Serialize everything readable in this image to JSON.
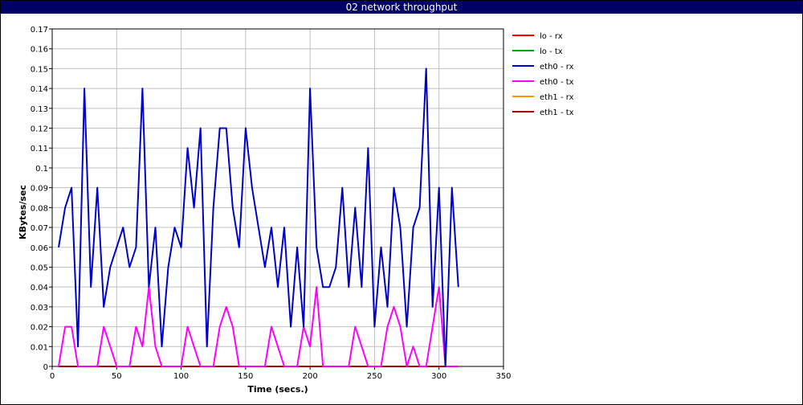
{
  "window": {
    "title": "02 network throughput"
  },
  "chart_data": {
    "type": "line",
    "title": "02 network throughput",
    "xlabel": "Time (secs.)",
    "ylabel": "KBytes/sec",
    "xlim": [
      0,
      350
    ],
    "ylim": [
      0,
      0.17
    ],
    "xticks": [
      0,
      50,
      100,
      150,
      200,
      250,
      300,
      350
    ],
    "yticks": [
      0,
      0.01,
      0.02,
      0.03,
      0.04,
      0.05,
      0.06,
      0.07,
      0.08,
      0.09,
      0.1,
      0.11,
      0.12,
      0.13,
      0.14,
      0.15,
      0.16,
      0.17
    ],
    "grid": true,
    "legend_position": "right",
    "series": [
      {
        "name": "lo - rx",
        "color": "#ff0000",
        "x": [
          5,
          315
        ],
        "y": [
          0,
          0
        ]
      },
      {
        "name": "lo - tx",
        "color": "#00aa00",
        "x": [
          5,
          315
        ],
        "y": [
          0,
          0
        ]
      },
      {
        "name": "eth0 - rx",
        "color": "#0000cc",
        "x": [
          5,
          10,
          15,
          20,
          25,
          30,
          35,
          40,
          45,
          50,
          55,
          60,
          65,
          70,
          75,
          80,
          85,
          90,
          95,
          100,
          105,
          110,
          115,
          120,
          125,
          130,
          135,
          140,
          145,
          150,
          155,
          160,
          165,
          170,
          175,
          180,
          185,
          190,
          195,
          200,
          205,
          210,
          215,
          220,
          225,
          230,
          235,
          240,
          245,
          250,
          255,
          260,
          265,
          270,
          275,
          280,
          285,
          290,
          295,
          300,
          305,
          310,
          315
        ],
        "y": [
          0.06,
          0.08,
          0.09,
          0.01,
          0.14,
          0.04,
          0.09,
          0.03,
          0.05,
          0.06,
          0.07,
          0.05,
          0.06,
          0.14,
          0.04,
          0.07,
          0.01,
          0.05,
          0.07,
          0.06,
          0.11,
          0.08,
          0.12,
          0.01,
          0.08,
          0.12,
          0.12,
          0.08,
          0.06,
          0.12,
          0.09,
          0.07,
          0.05,
          0.07,
          0.04,
          0.07,
          0.02,
          0.06,
          0.02,
          0.14,
          0.06,
          0.04,
          0.04,
          0.05,
          0.09,
          0.04,
          0.08,
          0.04,
          0.11,
          0.02,
          0.06,
          0.03,
          0.09,
          0.07,
          0.02,
          0.07,
          0.08,
          0.15,
          0.03,
          0.09,
          0.0,
          0.09,
          0.04
        ]
      },
      {
        "name": "eth0 - tx",
        "color": "#ff00ff",
        "x": [
          5,
          10,
          15,
          20,
          25,
          30,
          35,
          40,
          45,
          50,
          55,
          60,
          65,
          70,
          75,
          80,
          85,
          90,
          95,
          100,
          105,
          110,
          115,
          120,
          125,
          130,
          135,
          140,
          145,
          150,
          155,
          160,
          165,
          170,
          175,
          180,
          185,
          190,
          195,
          200,
          205,
          210,
          215,
          220,
          225,
          230,
          235,
          240,
          245,
          250,
          255,
          260,
          265,
          270,
          275,
          280,
          285,
          290,
          295,
          300,
          305,
          310,
          315
        ],
        "y": [
          0,
          0.02,
          0.02,
          0,
          0,
          0,
          0,
          0.02,
          0.01,
          0,
          0,
          0,
          0.02,
          0.01,
          0.04,
          0.01,
          0,
          0,
          0,
          0,
          0.02,
          0.01,
          0,
          0,
          0,
          0.02,
          0.03,
          0.02,
          0,
          0,
          0,
          0,
          0,
          0.02,
          0.01,
          0,
          0,
          0,
          0.02,
          0.01,
          0.04,
          0,
          0,
          0,
          0,
          0,
          0.02,
          0.01,
          0,
          0,
          0,
          0.02,
          0.03,
          0.02,
          0,
          0.01,
          0,
          0,
          0.02,
          0.04,
          0,
          0,
          0
        ]
      },
      {
        "name": "eth1 - rx",
        "color": "#ff9900",
        "x": [
          5,
          315
        ],
        "y": [
          0,
          0
        ]
      },
      {
        "name": "eth1 - tx",
        "color": "#aa0000",
        "x": [
          5,
          315
        ],
        "y": [
          0,
          0
        ]
      }
    ]
  }
}
